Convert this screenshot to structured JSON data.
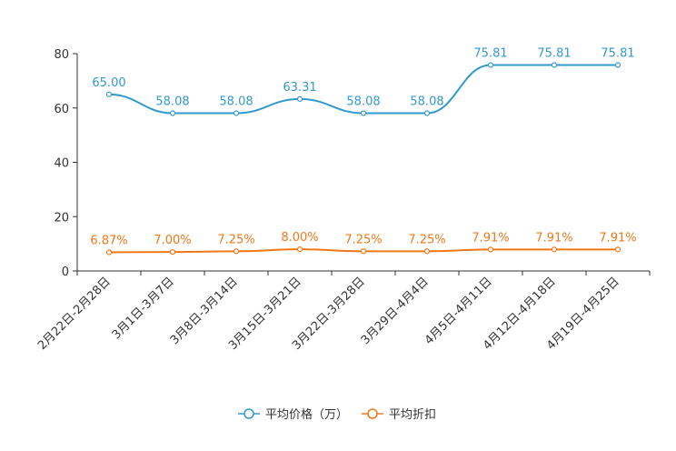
{
  "chart_data": {
    "type": "line",
    "categories": [
      "2月22日-2月28日",
      "3月1日-3月7日",
      "3月8日-3月14日",
      "3月15日-3月21日",
      "3月22日-3月28日",
      "3月29日-4月4日",
      "4月5日-4月11日",
      "4月12日-4月18日",
      "4月19日-4月25日"
    ],
    "series": [
      {
        "name": "平均价格（万）",
        "color": "#3399cc",
        "values": [
          65.0,
          58.08,
          58.08,
          63.31,
          58.08,
          58.08,
          75.81,
          75.81,
          75.81
        ],
        "labels": [
          "65.00",
          "58.08",
          "58.08",
          "63.31",
          "58.08",
          "58.08",
          "75.81",
          "75.81",
          "75.81"
        ]
      },
      {
        "name": "平均折扣",
        "color": "#f07818",
        "values": [
          6.87,
          7.0,
          7.25,
          8.0,
          7.25,
          7.25,
          7.91,
          7.91,
          7.91
        ],
        "labels": [
          "6.87%",
          "7.00%",
          "7.25%",
          "8.00%",
          "7.25%",
          "7.25%",
          "7.91%",
          "7.91%",
          "7.91%"
        ]
      }
    ],
    "yticks": [
      "0",
      "20",
      "40",
      "60",
      "80"
    ],
    "ylim": [
      0,
      80
    ],
    "title": "",
    "xlabel": "",
    "ylabel": "",
    "legend": "bottom-center"
  }
}
